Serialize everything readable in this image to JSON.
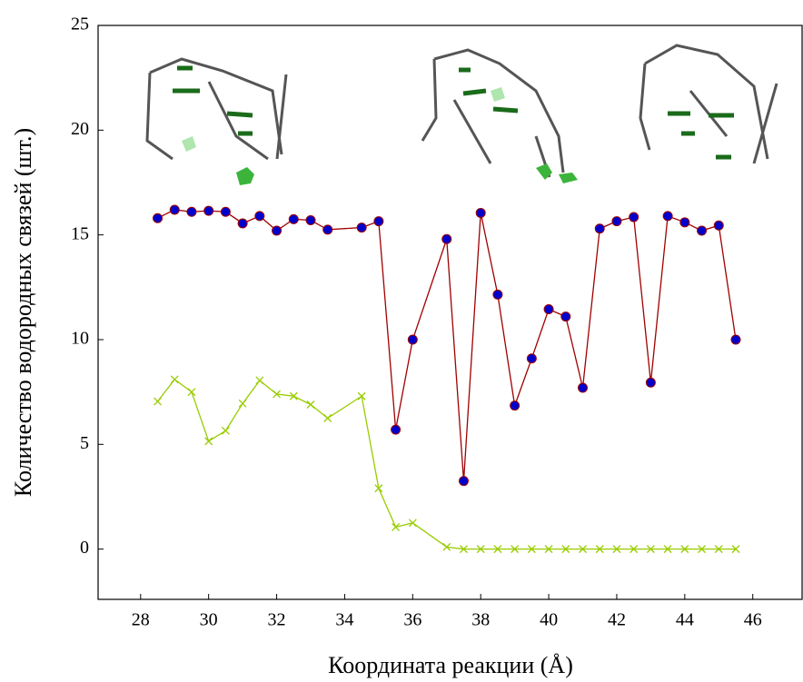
{
  "chart_data": {
    "type": "line",
    "xlabel": "Координата реакции (Å)",
    "ylabel": "Количество водородных связей (шт.)",
    "x": [
      28.5,
      29,
      29.5,
      30,
      30.5,
      31,
      31.5,
      32,
      32.5,
      33,
      33.5,
      34.5,
      35,
      35.5,
      36,
      37,
      37.5,
      38,
      38.5,
      39,
      39.5,
      40,
      40.5,
      41,
      41.5,
      42,
      42.5,
      43,
      43.5,
      44,
      44.5,
      45,
      45.5
    ],
    "series": [
      {
        "color": "#a00000",
        "marker": "circle",
        "marker_color": "#0000cc",
        "values": [
          15.8,
          16.2,
          16.1,
          16.15,
          16.1,
          15.55,
          15.9,
          15.2,
          15.75,
          15.7,
          15.25,
          15.35,
          15.65,
          5.7,
          10.0,
          14.8,
          3.25,
          16.05,
          12.15,
          6.85,
          9.1,
          11.45,
          11.1,
          7.7,
          15.3,
          15.65,
          15.85,
          7.95,
          15.9,
          15.6,
          15.2,
          15.45,
          10.0
        ]
      },
      {
        "color": "#99cc00",
        "marker": "x",
        "marker_color": "#99cc00",
        "values": [
          7.05,
          8.1,
          7.5,
          5.15,
          5.65,
          6.95,
          8.05,
          7.4,
          7.3,
          6.9,
          6.25,
          7.3,
          2.9,
          1.05,
          1.25,
          0.1,
          0,
          0,
          0,
          0,
          0,
          0,
          0,
          0,
          0,
          0,
          0,
          0,
          0,
          0,
          0,
          0,
          0
        ]
      }
    ],
    "xlim": [
      26.75,
      47.45
    ],
    "ylim": [
      -2.4,
      25
    ],
    "xticks": [
      28,
      30,
      32,
      34,
      36,
      38,
      40,
      42,
      44,
      46
    ],
    "yticks": [
      0,
      5,
      10,
      15,
      20,
      25
    ]
  }
}
